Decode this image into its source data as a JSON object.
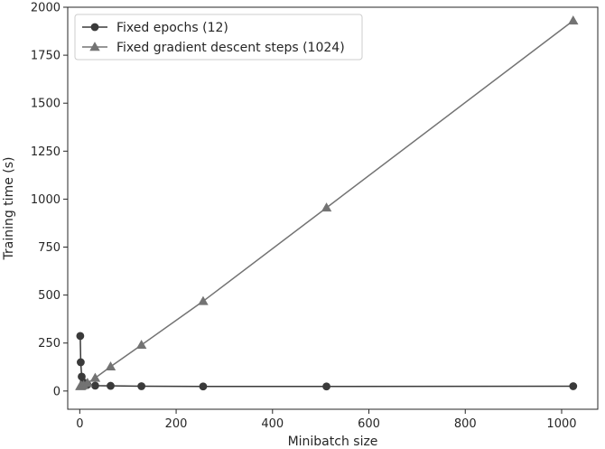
{
  "chart_data": {
    "type": "line",
    "xlabel": "Minibatch size",
    "ylabel": "Training time (s)",
    "xlim": [
      -25,
      1075
    ],
    "ylim": [
      -95,
      2000
    ],
    "xticks": [
      0,
      200,
      400,
      600,
      800,
      1000
    ],
    "yticks": [
      0,
      250,
      500,
      750,
      1000,
      1250,
      1500,
      1750,
      2000
    ],
    "grid": false,
    "legend_position": "top-left",
    "series": [
      {
        "name": "Fixed epochs (12)",
        "marker": "circle",
        "color": "#3a3a3a",
        "x": [
          1,
          2,
          4,
          8,
          16,
          32,
          64,
          128,
          256,
          512,
          1024
        ],
        "y": [
          287,
          150,
          75,
          45,
          33,
          28,
          27,
          25,
          24,
          24,
          25
        ]
      },
      {
        "name": "Fixed gradient descent steps (1024)",
        "marker": "triangle",
        "color": "#737373",
        "x": [
          1,
          2,
          4,
          8,
          16,
          32,
          64,
          128,
          256,
          512,
          1024
        ],
        "y": [
          25,
          25,
          27,
          30,
          42,
          68,
          127,
          240,
          468,
          955,
          1930
        ]
      }
    ]
  }
}
